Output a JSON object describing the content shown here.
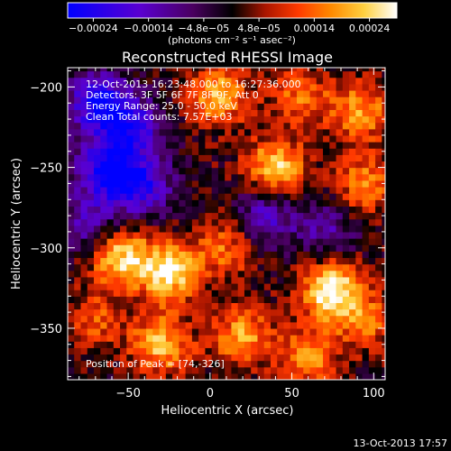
{
  "chart_data": {
    "type": "heatmap",
    "title": "Reconstructed RHESSI Image",
    "xlabel": "Heliocentric X (arcsec)",
    "ylabel": "Heliocentric Y (arcsec)",
    "xlim": [
      -87,
      107
    ],
    "ylim": [
      -382,
      -188
    ],
    "x_ticks": [
      -50,
      0,
      50,
      100
    ],
    "x_tick_labels": [
      "−50",
      "0",
      "50",
      "100"
    ],
    "y_ticks": [
      -200,
      -250,
      -300,
      -350
    ],
    "y_tick_labels": [
      "−200",
      "−250",
      "−300",
      "−350"
    ],
    "colorbar": {
      "range": [
        -0.00024,
        0.00024
      ],
      "tick_labels": [
        "−0.00024",
        "−0.00014",
        "−4.8e−05",
        "4.8e−05",
        "0.00014",
        "0.00024"
      ],
      "unit_label": "(photons cm⁻² s⁻¹ asec⁻²)",
      "colormap": [
        "#0000ff",
        "#5a00d0",
        "#4a0060",
        "#000000",
        "#aa1500",
        "#ff3a00",
        "#ff8a00",
        "#ffd040",
        "#ffffff"
      ]
    },
    "annotations": [
      "12-Oct-2013 16:23:48.000 to 16:27:36.000",
      "Detectors: 3F 5F 6F 7F 8F 9F, Att 0",
      "Energy Range: 25.0 - 50.0 keV",
      "Clean    Total counts: 7.57E+03",
      "Position of Peak = [74,-326]"
    ],
    "peak": {
      "x": 74,
      "y": -326
    },
    "grid": false,
    "sources": [
      {
        "x": -68,
        "y": -210,
        "v": -0.00022
      },
      {
        "x": -48,
        "y": -225,
        "v": -0.00018
      },
      {
        "x": -62,
        "y": -252,
        "v": -0.00024
      },
      {
        "x": -40,
        "y": -262,
        "v": -0.00016
      },
      {
        "x": -75,
        "y": -285,
        "v": -0.00012
      },
      {
        "x": 35,
        "y": -280,
        "v": -0.00014
      },
      {
        "x": 72,
        "y": -290,
        "v": -0.0001
      },
      {
        "x": 5,
        "y": -205,
        "v": 0.00018
      },
      {
        "x": 55,
        "y": -205,
        "v": 0.00012
      },
      {
        "x": 92,
        "y": -215,
        "v": 0.00016
      },
      {
        "x": 40,
        "y": -250,
        "v": 0.0002
      },
      {
        "x": 95,
        "y": -260,
        "v": 0.00014
      },
      {
        "x": -55,
        "y": -305,
        "v": 0.0002
      },
      {
        "x": -25,
        "y": -315,
        "v": 0.00022
      },
      {
        "x": 10,
        "y": -300,
        "v": 0.00012
      },
      {
        "x": 74,
        "y": -326,
        "v": 0.00024
      },
      {
        "x": -30,
        "y": -360,
        "v": 0.00018
      },
      {
        "x": 20,
        "y": -355,
        "v": 0.00016
      },
      {
        "x": 60,
        "y": -368,
        "v": 0.00014
      },
      {
        "x": 95,
        "y": -345,
        "v": 0.00012
      },
      {
        "x": -70,
        "y": -345,
        "v": 0.0001
      }
    ]
  },
  "footer_timestamp": "13-Oct-2013 17:57"
}
